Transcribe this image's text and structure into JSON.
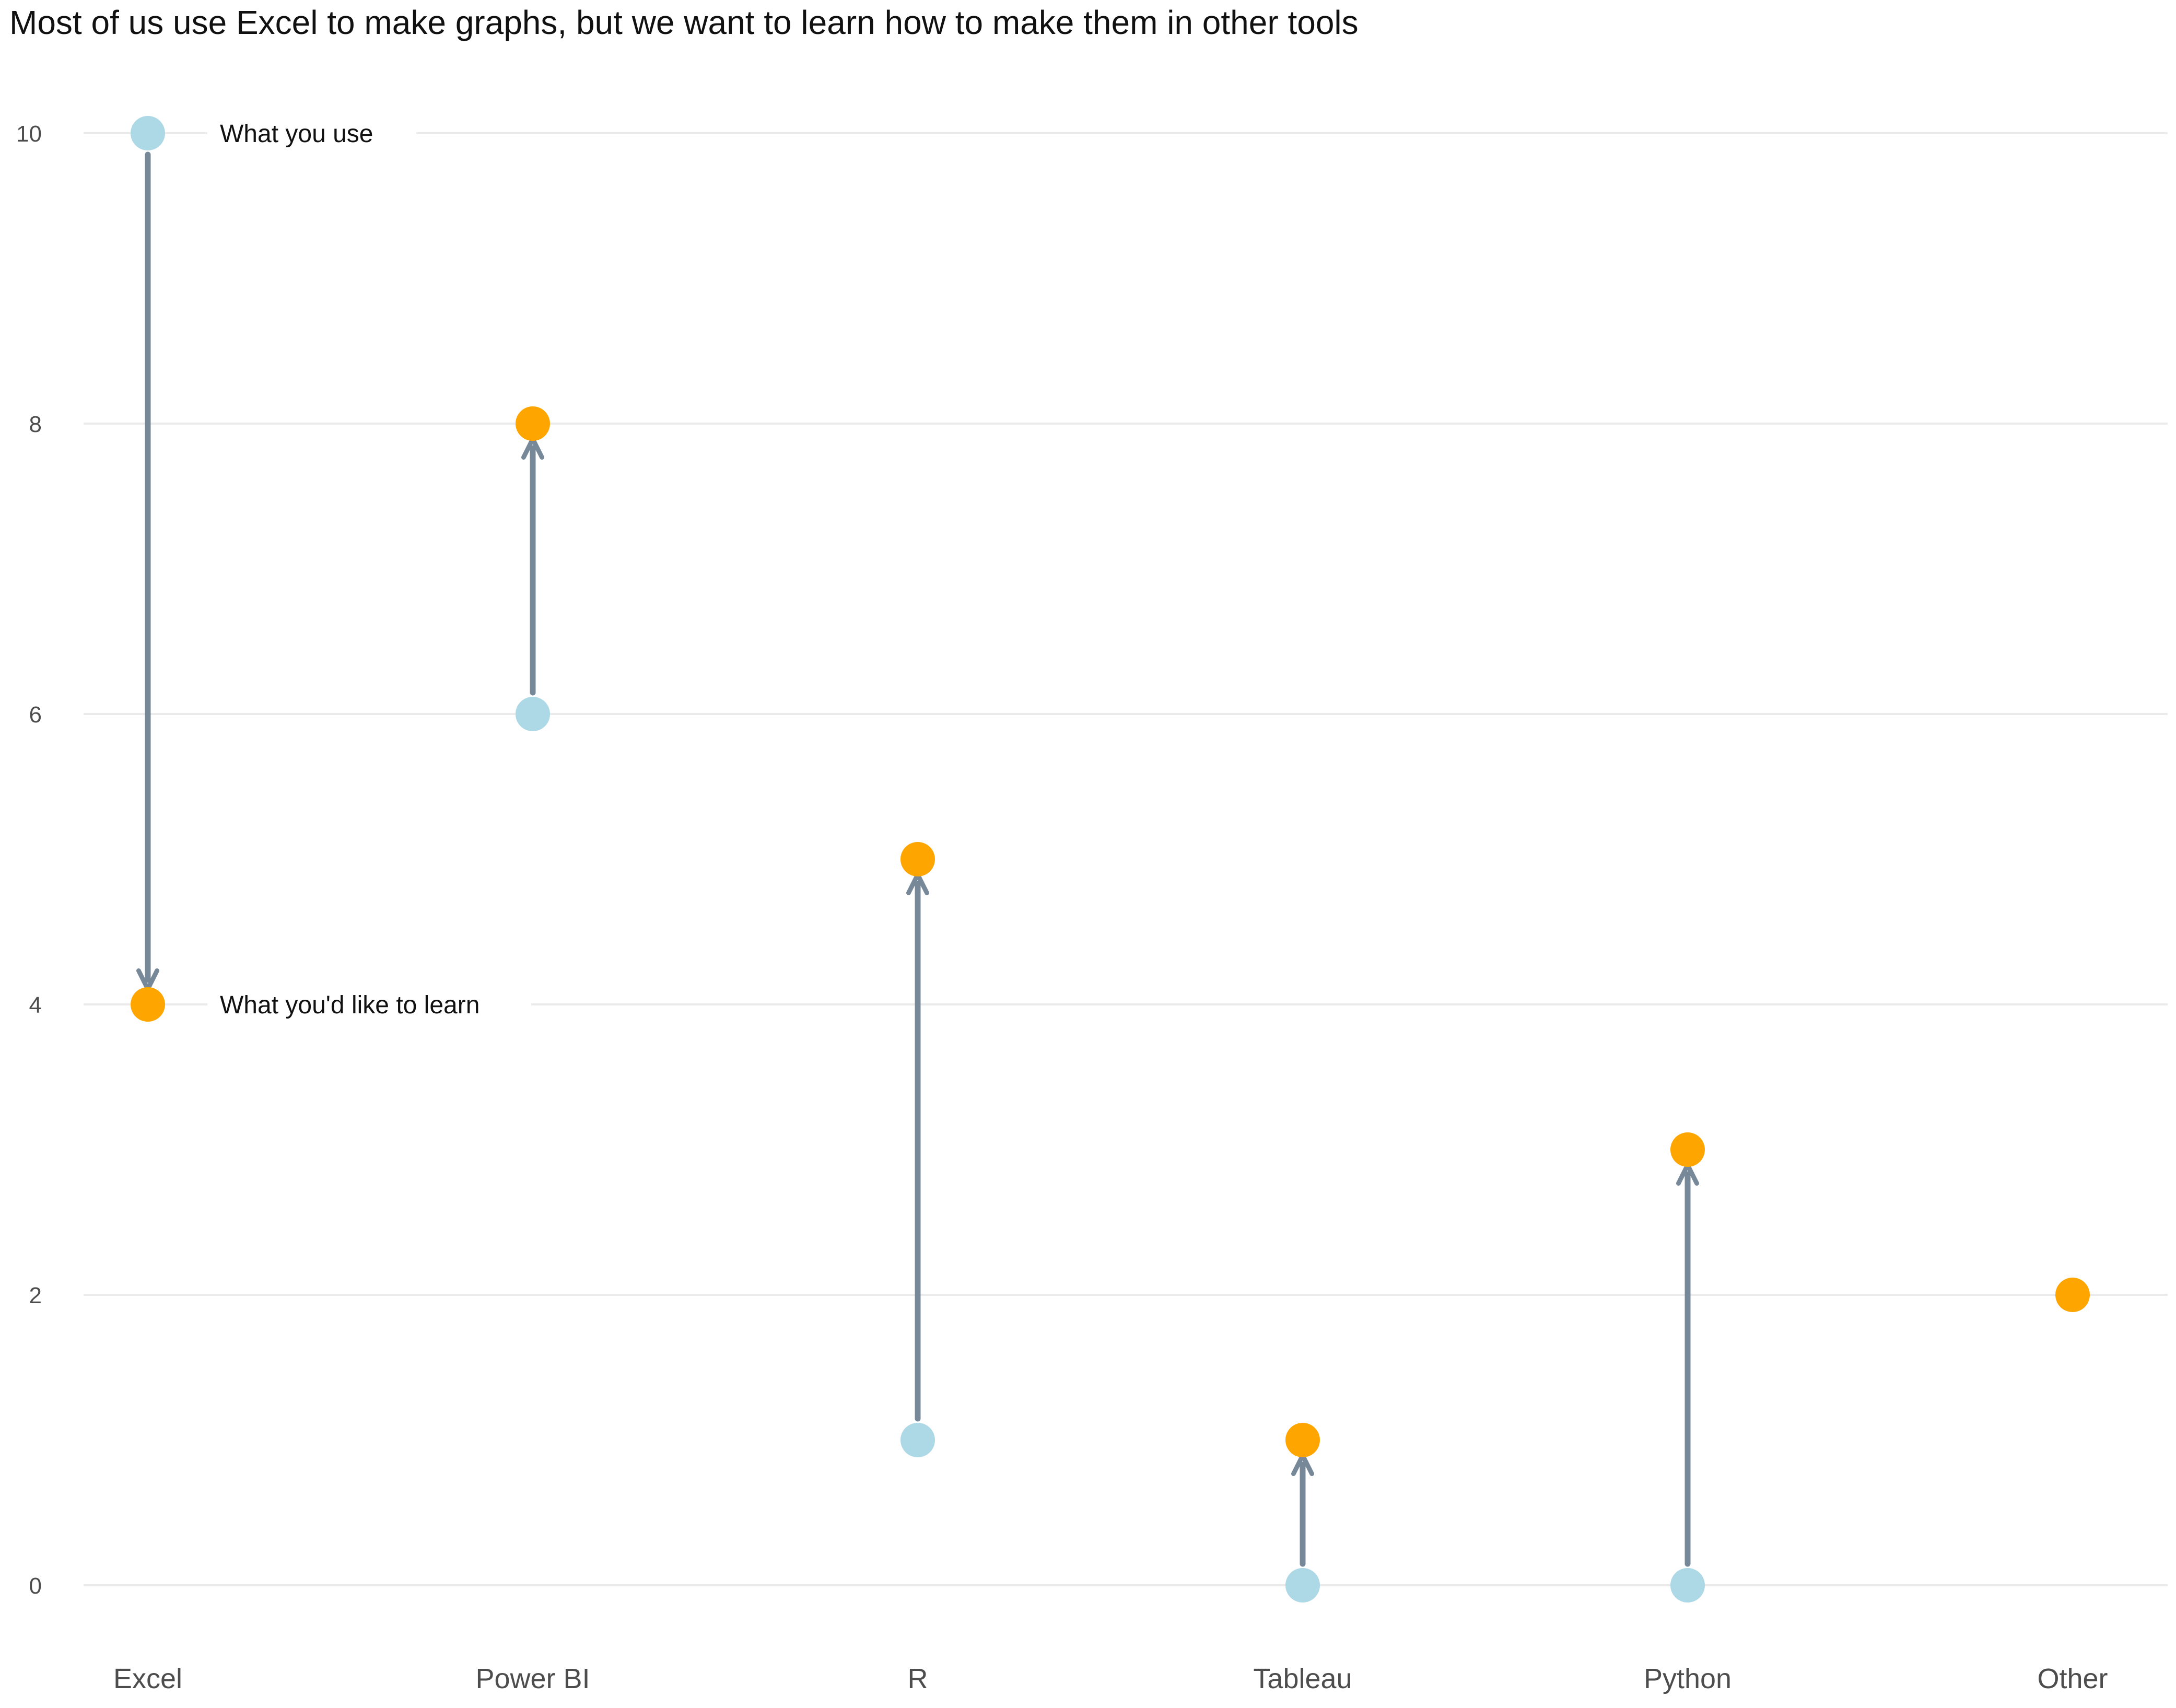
{
  "chart_data": {
    "type": "dumbbell-arrow",
    "title": "Most of us use Excel to make graphs, but we want to learn how to make them in other tools",
    "xlabel": "",
    "ylabel": "",
    "ylim": [
      0,
      10
    ],
    "yticks": [
      0,
      2,
      4,
      6,
      8,
      10
    ],
    "grid": true,
    "categories": [
      "Excel",
      "Power BI",
      "R",
      "Tableau",
      "Python",
      "Other"
    ],
    "series": [
      {
        "values": [
          10,
          6,
          1,
          0,
          0,
          null
        ],
        "color": "#ADD8E6"
      },
      {
        "values": [
          4,
          8,
          5,
          1,
          3,
          2
        ],
        "color": "#FFA500"
      }
    ],
    "arrow_color": "#778899",
    "annotations": {
      "use_label": "What you use",
      "learn_label": "What you'd like to learn"
    }
  }
}
